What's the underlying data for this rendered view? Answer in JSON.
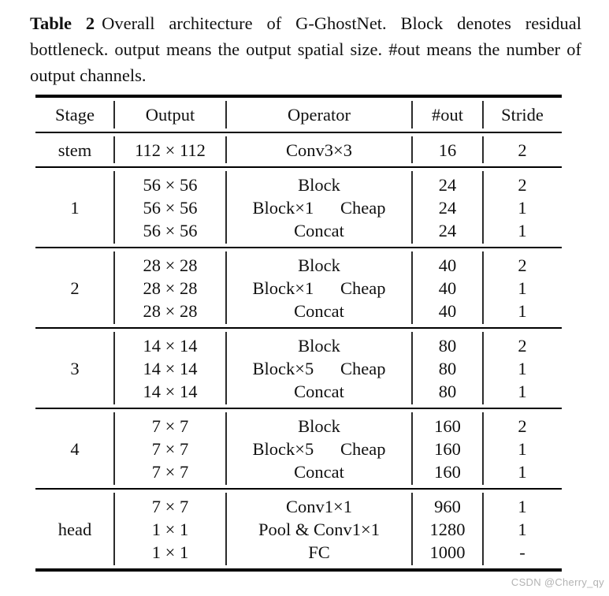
{
  "caption": {
    "label": "Table 2",
    "text": "Overall architecture of G-GhostNet. Block denotes residual bottleneck. output means the output spatial size. #out means the number of output channels."
  },
  "table": {
    "columns": [
      "Stage",
      "Output",
      "Operator",
      "#out",
      "Stride"
    ],
    "groups": [
      {
        "stage": "stem",
        "rows": [
          [
            "112 × 112",
            "Conv3×3",
            "16",
            "2"
          ]
        ]
      },
      {
        "stage": "1",
        "rows": [
          [
            "56 × 56",
            "Block",
            "24",
            "2"
          ],
          [
            "56 × 56",
            "Block×1  Cheap",
            "24",
            "1"
          ],
          [
            "56 × 56",
            "Concat",
            "24",
            "1"
          ]
        ]
      },
      {
        "stage": "2",
        "rows": [
          [
            "28 × 28",
            "Block",
            "40",
            "2"
          ],
          [
            "28 × 28",
            "Block×1  Cheap",
            "40",
            "1"
          ],
          [
            "28 × 28",
            "Concat",
            "40",
            "1"
          ]
        ]
      },
      {
        "stage": "3",
        "rows": [
          [
            "14 × 14",
            "Block",
            "80",
            "2"
          ],
          [
            "14 × 14",
            "Block×5  Cheap",
            "80",
            "1"
          ],
          [
            "14 × 14",
            "Concat",
            "80",
            "1"
          ]
        ]
      },
      {
        "stage": "4",
        "rows": [
          [
            "7 × 7",
            "Block",
            "160",
            "2"
          ],
          [
            "7 × 7",
            "Block×5  Cheap",
            "160",
            "1"
          ],
          [
            "7 × 7",
            "Concat",
            "160",
            "1"
          ]
        ]
      },
      {
        "stage": "head",
        "rows": [
          [
            "7 × 7",
            "Conv1×1",
            "960",
            "1"
          ],
          [
            "1 × 1",
            "Pool & Conv1×1",
            "1280",
            "1"
          ],
          [
            "1 × 1",
            "FC",
            "1000",
            "-"
          ]
        ]
      }
    ]
  },
  "watermark": {
    "text": "CSDN @Cherry_qy"
  },
  "colors": {
    "background": "#ffffff",
    "text": "#111111",
    "rule": "#000000",
    "divider": "#2b2b2b",
    "watermark": "#b3b3b3"
  }
}
